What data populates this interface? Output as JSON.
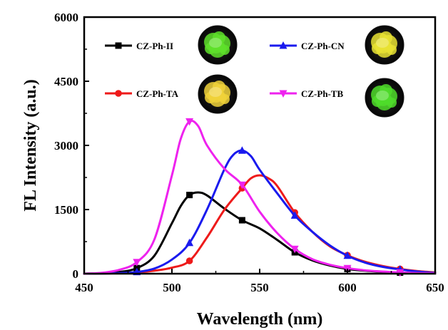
{
  "chart_data": {
    "type": "line",
    "xlabel": "Wavelength (nm)",
    "ylabel": "FL Intensity (a.u.)",
    "xlim": [
      450,
      650
    ],
    "ylim": [
      0,
      6000
    ],
    "xticks": [
      450,
      500,
      550,
      600,
      650
    ],
    "yticks": [
      0,
      1500,
      3000,
      4500,
      6000
    ],
    "grid": false,
    "legend_placement": "top",
    "series": [
      {
        "name": "CZ-Ph-II",
        "color": "#000000",
        "marker": "square",
        "sample_color": "#5ee02a",
        "x": [
          450,
          460,
          470,
          480,
          490,
          500,
          505,
          510,
          515,
          520,
          530,
          540,
          550,
          560,
          570,
          580,
          590,
          600,
          610,
          620,
          630,
          640,
          650
        ],
        "y": [
          0,
          10,
          40,
          130,
          420,
          1180,
          1580,
          1840,
          1900,
          1830,
          1520,
          1250,
          1060,
          790,
          500,
          310,
          190,
          110,
          70,
          40,
          25,
          15,
          10
        ],
        "marker_x": [
          480,
          510,
          540,
          570,
          600,
          630
        ]
      },
      {
        "name": "CZ-Ph-CN",
        "color": "#1a1aee",
        "marker": "triangle-up",
        "sample_color": "#e8e232",
        "x": [
          450,
          460,
          470,
          480,
          490,
          500,
          510,
          520,
          530,
          535,
          540,
          545,
          550,
          560,
          570,
          580,
          590,
          600,
          610,
          620,
          630,
          640,
          650
        ],
        "y": [
          0,
          5,
          15,
          40,
          120,
          330,
          720,
          1500,
          2450,
          2780,
          2880,
          2750,
          2430,
          1880,
          1360,
          980,
          660,
          420,
          260,
          160,
          100,
          50,
          20
        ],
        "marker_x": [
          480,
          510,
          540,
          570,
          600,
          630
        ]
      },
      {
        "name": "CZ-Ph-TA",
        "color": "#ee1a1a",
        "marker": "circle",
        "sample_color": "#f0d23a",
        "x": [
          450,
          460,
          470,
          480,
          490,
          500,
          510,
          520,
          530,
          540,
          545,
          550,
          555,
          560,
          570,
          580,
          590,
          600,
          610,
          620,
          630,
          640,
          650
        ],
        "y": [
          0,
          3,
          10,
          25,
          70,
          140,
          300,
          850,
          1500,
          2000,
          2230,
          2300,
          2230,
          2050,
          1430,
          980,
          640,
          430,
          280,
          180,
          110,
          60,
          30
        ],
        "marker_x": [
          510,
          540,
          570,
          600,
          630
        ]
      },
      {
        "name": "CZ-Ph-TB",
        "color": "#ee22ee",
        "marker": "triangle-down",
        "sample_color": "#4fdc2a",
        "x": [
          450,
          460,
          470,
          480,
          490,
          500,
          505,
          510,
          515,
          520,
          530,
          540,
          550,
          560,
          570,
          580,
          590,
          600,
          610,
          620,
          630,
          640,
          650
        ],
        "y": [
          0,
          20,
          90,
          270,
          800,
          2300,
          3150,
          3560,
          3450,
          3000,
          2450,
          2080,
          1450,
          950,
          580,
          340,
          210,
          130,
          80,
          50,
          30,
          15,
          10
        ],
        "marker_x": [
          480,
          510,
          540,
          570,
          600,
          630
        ]
      }
    ]
  }
}
